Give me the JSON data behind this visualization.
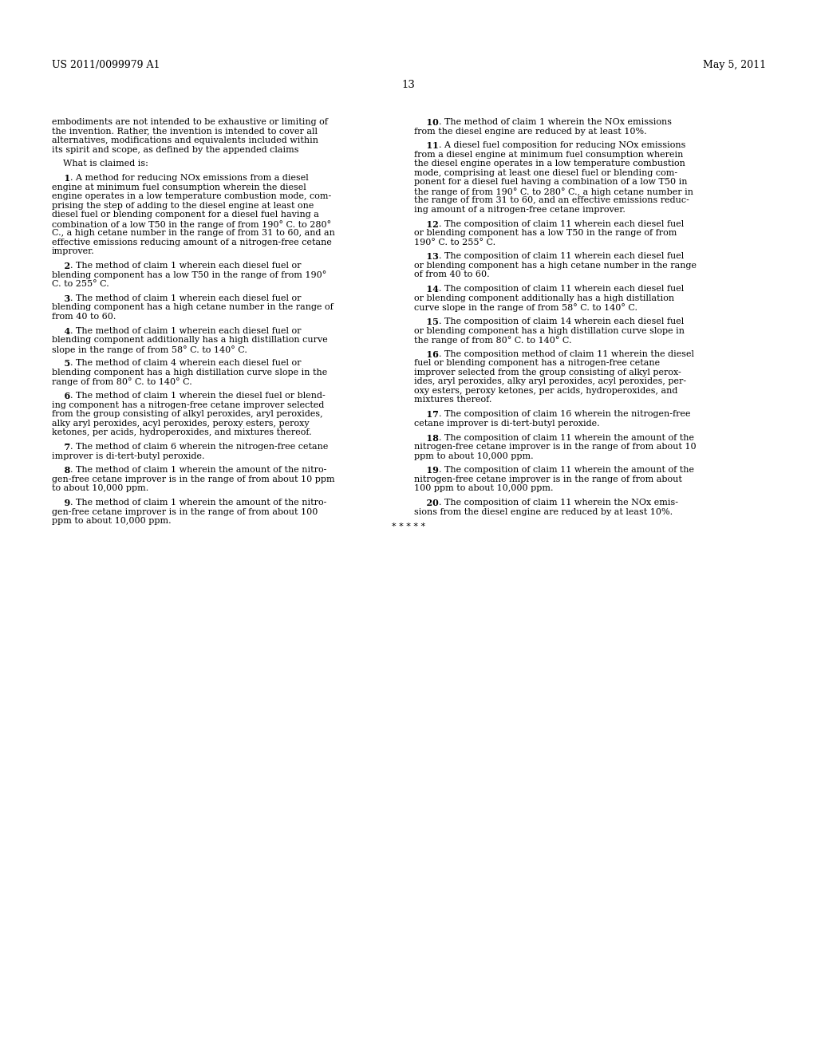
{
  "background_color": "#ffffff",
  "header_left": "US 2011/0099979 A1",
  "header_right": "May 5, 2011",
  "page_number": "13",
  "left_col_lines": [
    {
      "t": "embodiments are not intended to be exhaustive or limiting of",
      "b": false
    },
    {
      "t": "the invention. Rather, the invention is intended to cover all",
      "b": false
    },
    {
      "t": "alternatives, modifications and equivalents included within",
      "b": false
    },
    {
      "t": "its spirit and scope, as defined by the appended claims",
      "b": false
    },
    {
      "t": "",
      "b": false
    },
    {
      "t": "    What is claimed is:",
      "b": false
    },
    {
      "t": "",
      "b": false
    },
    {
      "t": "    1",
      "b": true,
      "rest": ". A method for reducing NOx emissions from a diesel"
    },
    {
      "t": "engine at minimum fuel consumption wherein the diesel",
      "b": false
    },
    {
      "t": "engine operates in a low temperature combustion mode, com-",
      "b": false
    },
    {
      "t": "prising the step of adding to the diesel engine at least one",
      "b": false
    },
    {
      "t": "diesel fuel or blending component for a diesel fuel having a",
      "b": false
    },
    {
      "t": "combination of a low T50 in the range of from 190° C. to 280°",
      "b": false
    },
    {
      "t": "C., a high cetane number in the range of from 31 to 60, and an",
      "b": false
    },
    {
      "t": "effective emissions reducing amount of a nitrogen-free cetane",
      "b": false
    },
    {
      "t": "improver.",
      "b": false
    },
    {
      "t": "",
      "b": false
    },
    {
      "t": "    2",
      "b": true,
      "rest": ". The method of claim 1 wherein each diesel fuel or"
    },
    {
      "t": "blending component has a low T50 in the range of from 190°",
      "b": false
    },
    {
      "t": "C. to 255° C.",
      "b": false
    },
    {
      "t": "",
      "b": false
    },
    {
      "t": "    3",
      "b": true,
      "rest": ". The method of claim 1 wherein each diesel fuel or"
    },
    {
      "t": "blending component has a high cetane number in the range of",
      "b": false
    },
    {
      "t": "from 40 to 60.",
      "b": false
    },
    {
      "t": "",
      "b": false
    },
    {
      "t": "    4",
      "b": true,
      "rest": ". The method of claim 1 wherein each diesel fuel or"
    },
    {
      "t": "blending component additionally has a high distillation curve",
      "b": false
    },
    {
      "t": "slope in the range of from 58° C. to 140° C.",
      "b": false
    },
    {
      "t": "",
      "b": false
    },
    {
      "t": "    5",
      "b": true,
      "rest": ". The method of claim 4 wherein each diesel fuel or"
    },
    {
      "t": "blending component has a high distillation curve slope in the",
      "b": false
    },
    {
      "t": "range of from 80° C. to 140° C.",
      "b": false
    },
    {
      "t": "",
      "b": false
    },
    {
      "t": "    6",
      "b": true,
      "rest": ". The method of claim 1 wherein the diesel fuel or blend-"
    },
    {
      "t": "ing component has a nitrogen-free cetane improver selected",
      "b": false
    },
    {
      "t": "from the group consisting of alkyl peroxides, aryl peroxides,",
      "b": false
    },
    {
      "t": "alky aryl peroxides, acyl peroxides, peroxy esters, peroxy",
      "b": false
    },
    {
      "t": "ketones, per acids, hydroperoxides, and mixtures thereof.",
      "b": false
    },
    {
      "t": "",
      "b": false
    },
    {
      "t": "    7",
      "b": true,
      "rest": ". The method of claim 6 wherein the nitrogen-free cetane"
    },
    {
      "t": "improver is di-tert-butyl peroxide.",
      "b": false
    },
    {
      "t": "",
      "b": false
    },
    {
      "t": "    8",
      "b": true,
      "rest": ". The method of claim 1 wherein the amount of the nitro-"
    },
    {
      "t": "gen-free cetane improver is in the range of from about 10 ppm",
      "b": false
    },
    {
      "t": "to about 10,000 ppm.",
      "b": false
    },
    {
      "t": "",
      "b": false
    },
    {
      "t": "    9",
      "b": true,
      "rest": ". The method of claim 1 wherein the amount of the nitro-"
    },
    {
      "t": "gen-free cetane improver is in the range of from about 100",
      "b": false
    },
    {
      "t": "ppm to about 10,000 ppm.",
      "b": false
    }
  ],
  "right_col_lines": [
    {
      "t": "    10",
      "b": true,
      "rest": ". The method of claim 1 wherein the NOx emissions"
    },
    {
      "t": "from the diesel engine are reduced by at least 10%.",
      "b": false
    },
    {
      "t": "",
      "b": false
    },
    {
      "t": "    11",
      "b": true,
      "rest": ". A diesel fuel composition for reducing NOx emissions"
    },
    {
      "t": "from a diesel engine at minimum fuel consumption wherein",
      "b": false
    },
    {
      "t": "the diesel engine operates in a low temperature combustion",
      "b": false
    },
    {
      "t": "mode, comprising at least one diesel fuel or blending com-",
      "b": false
    },
    {
      "t": "ponent for a diesel fuel having a combination of a low T50 in",
      "b": false
    },
    {
      "t": "the range of from 190° C. to 280° C., a high cetane number in",
      "b": false
    },
    {
      "t": "the range of from 31 to 60, and an effective emissions reduc-",
      "b": false
    },
    {
      "t": "ing amount of a nitrogen-free cetane improver.",
      "b": false
    },
    {
      "t": "",
      "b": false
    },
    {
      "t": "    12",
      "b": true,
      "rest": ". The composition of claim 11 wherein each diesel fuel"
    },
    {
      "t": "or blending component has a low T50 in the range of from",
      "b": false
    },
    {
      "t": "190° C. to 255° C.",
      "b": false
    },
    {
      "t": "",
      "b": false
    },
    {
      "t": "    13",
      "b": true,
      "rest": ". The composition of claim 11 wherein each diesel fuel"
    },
    {
      "t": "or blending component has a high cetane number in the range",
      "b": false
    },
    {
      "t": "of from 40 to 60.",
      "b": false
    },
    {
      "t": "",
      "b": false
    },
    {
      "t": "    14",
      "b": true,
      "rest": ". The composition of claim 11 wherein each diesel fuel"
    },
    {
      "t": "or blending component additionally has a high distillation",
      "b": false
    },
    {
      "t": "curve slope in the range of from 58° C. to 140° C.",
      "b": false
    },
    {
      "t": "",
      "b": false
    },
    {
      "t": "    15",
      "b": true,
      "rest": ". The composition of claim 14 wherein each diesel fuel"
    },
    {
      "t": "or blending component has a high distillation curve slope in",
      "b": false
    },
    {
      "t": "the range of from 80° C. to 140° C.",
      "b": false
    },
    {
      "t": "",
      "b": false
    },
    {
      "t": "    16",
      "b": true,
      "rest": ". The composition method of claim 11 wherein the diesel"
    },
    {
      "t": "fuel or blending component has a nitrogen-free cetane",
      "b": false
    },
    {
      "t": "improver selected from the group consisting of alkyl perox-",
      "b": false
    },
    {
      "t": "ides, aryl peroxides, alky aryl peroxides, acyl peroxides, per-",
      "b": false
    },
    {
      "t": "oxy esters, peroxy ketones, per acids, hydroperoxides, and",
      "b": false
    },
    {
      "t": "mixtures thereof.",
      "b": false
    },
    {
      "t": "",
      "b": false
    },
    {
      "t": "    17",
      "b": true,
      "rest": ". The composition of claim 16 wherein the nitrogen-free"
    },
    {
      "t": "cetane improver is di-tert-butyl peroxide.",
      "b": false
    },
    {
      "t": "",
      "b": false
    },
    {
      "t": "    18",
      "b": true,
      "rest": ". The composition of claim 11 wherein the amount of the"
    },
    {
      "t": "nitrogen-free cetane improver is in the range of from about 10",
      "b": false
    },
    {
      "t": "ppm to about 10,000 ppm.",
      "b": false
    },
    {
      "t": "",
      "b": false
    },
    {
      "t": "    19",
      "b": true,
      "rest": ". The composition of claim 11 wherein the amount of the"
    },
    {
      "t": "nitrogen-free cetane improver is in the range of from about",
      "b": false
    },
    {
      "t": "100 ppm to about 10,000 ppm.",
      "b": false
    },
    {
      "t": "",
      "b": false
    },
    {
      "t": "    20",
      "b": true,
      "rest": ". The composition of claim 11 wherein the NOx emis-"
    },
    {
      "t": "sions from the diesel engine are reduced by at least 10%.",
      "b": false
    },
    {
      "t": "",
      "b": false
    },
    {
      "t": "* * * * *",
      "b": false,
      "center": true
    }
  ]
}
